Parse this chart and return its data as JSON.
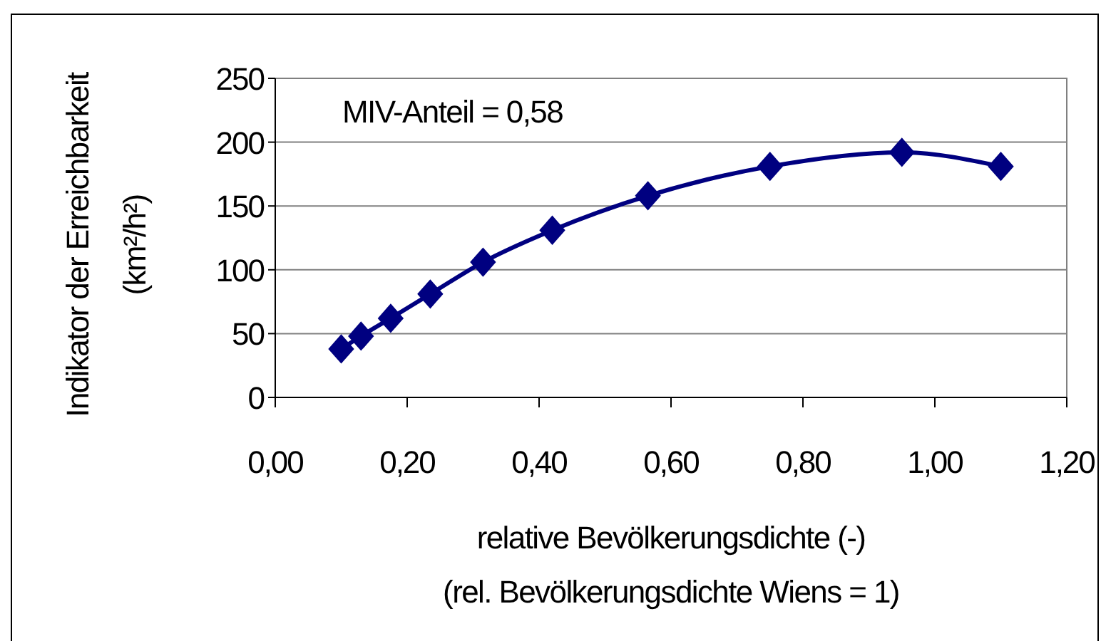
{
  "chart_data": {
    "type": "line",
    "xlabel": "relative Bevölkerungsdichte (-)\n(rel. Bevölkerungsdichte Wiens = 1)",
    "ylabel": "Indikator der Erreichbarkeit\n(km²/h²)",
    "annotations": [
      "MIV-Anteil = 0,58"
    ],
    "x": [
      0.1,
      0.13,
      0.175,
      0.235,
      0.315,
      0.42,
      0.565,
      0.75,
      0.95,
      1.1
    ],
    "series": [
      {
        "color": "#000080",
        "values": [
          38,
          48,
          62,
          81,
          106,
          131,
          158,
          181,
          192,
          181
        ]
      }
    ],
    "xlim": [
      0,
      1.2
    ],
    "xticks": [
      {
        "value": 0,
        "label": "0,00"
      },
      {
        "value": 0.2,
        "label": "0,20"
      },
      {
        "value": 0.4,
        "label": "0,40"
      },
      {
        "value": 0.6,
        "label": "0,60"
      },
      {
        "value": 0.8,
        "label": "0,80"
      },
      {
        "value": 1.0,
        "label": "1,00"
      },
      {
        "value": 1.2,
        "label": "1,20"
      }
    ],
    "ylim": [
      0,
      250
    ],
    "yticks": [
      0,
      50,
      100,
      150,
      200,
      250
    ],
    "grid": "y",
    "marker": "diamond",
    "line_style": "solid"
  }
}
